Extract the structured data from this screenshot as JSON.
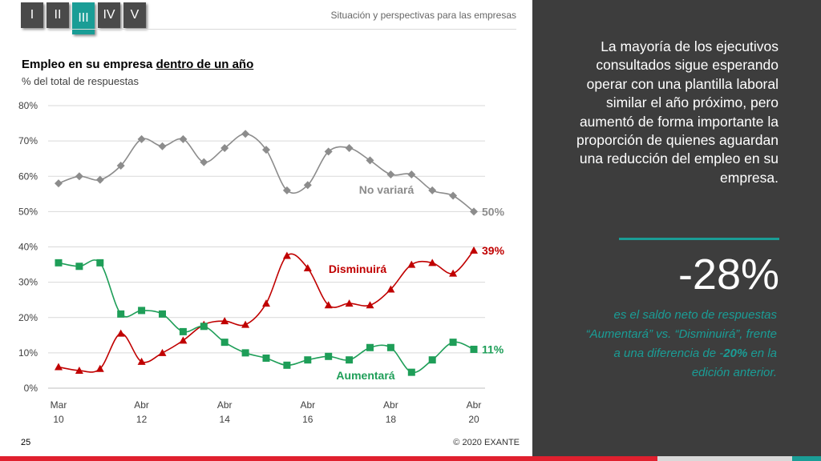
{
  "nav": {
    "tabs": [
      {
        "label": "I",
        "active": false
      },
      {
        "label": "II",
        "active": false
      },
      {
        "label": "III",
        "active": true
      },
      {
        "label": "IV",
        "active": false
      },
      {
        "label": "V",
        "active": false
      }
    ]
  },
  "header": {
    "title": "Situación y perspectivas para las empresas"
  },
  "chart_header": {
    "title_part1": "Empleo en su empresa ",
    "title_underlined": "dentro de un año",
    "subtitle": "% del total de respuestas"
  },
  "chart_data": {
    "type": "line",
    "title": "Empleo en su empresa dentro de un año",
    "subtitle": "% del total de respuestas",
    "ylim": [
      0,
      80
    ],
    "yticks": [
      "0%",
      "10%",
      "20%",
      "30%",
      "40%",
      "50%",
      "60%",
      "70%",
      "80%"
    ],
    "grid": true,
    "x_tick_labels": [
      {
        "index": 0,
        "line1": "Mar",
        "line2": "10"
      },
      {
        "index": 4,
        "line1": "Abr",
        "line2": "12"
      },
      {
        "index": 8,
        "line1": "Abr",
        "line2": "14"
      },
      {
        "index": 12,
        "line1": "Abr",
        "line2": "16"
      },
      {
        "index": 16,
        "line1": "Abr",
        "line2": "18"
      },
      {
        "index": 20,
        "line1": "Abr",
        "line2": "20"
      }
    ],
    "series": [
      {
        "name": "No variará",
        "color": "#8c8c8c",
        "marker": "diamond",
        "end_label": "50%",
        "values": [
          58,
          60,
          59,
          63,
          70.5,
          68.5,
          70.5,
          64,
          68,
          72,
          67.5,
          56,
          57.5,
          67,
          68,
          64.5,
          60.5,
          60.5,
          56,
          54.5,
          50
        ]
      },
      {
        "name": "Disminuirá",
        "color": "#c00000",
        "marker": "triangle",
        "end_label": "39%",
        "values": [
          6,
          5,
          5.5,
          15.5,
          7.5,
          10,
          13.5,
          18,
          19,
          18,
          24,
          37.5,
          34,
          23.5,
          24,
          23.5,
          28,
          35,
          35.5,
          32.5,
          39
        ]
      },
      {
        "name": "Aumentará",
        "color": "#1e9e58",
        "marker": "square",
        "end_label": "11%",
        "values": [
          35.5,
          34.5,
          35.5,
          21,
          22,
          21,
          16,
          17.5,
          13,
          10,
          8.5,
          6.5,
          8,
          9,
          8,
          11.5,
          11.5,
          4.5,
          8,
          13,
          11
        ]
      }
    ]
  },
  "sidebar": {
    "summary": "La mayoría de los ejecutivos consultados sigue esperando operar con una plantilla laboral similar el año próximo, pero aumentó de forma importante la proporción de quienes aguardan una reducción del empleo en su empresa.",
    "big_value": "-28%",
    "note_part1": "es el saldo neto de respuestas “Aumentará”  vs. “Disminuirá”, frente a una diferencia de -",
    "note_bold": "20%",
    "note_part2": " en la edición anterior."
  },
  "footer": {
    "page_number": "25",
    "copyright": "© 2020 EXANTE"
  },
  "colors": {
    "accent": "#1a9d96",
    "panel": "#3d3d3d",
    "brand_red": "#e0202e"
  }
}
